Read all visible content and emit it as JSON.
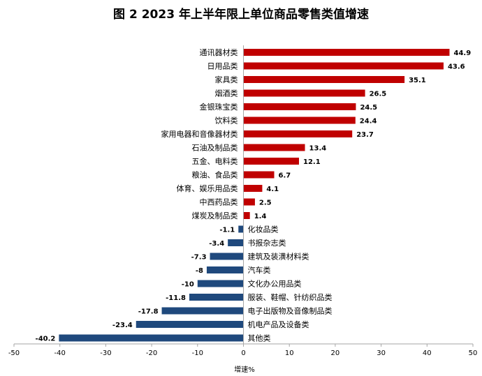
{
  "chart_data": {
    "type": "bar",
    "orientation": "horizontal",
    "title": "图 2  2023 年上半年限上单位商品零售类值增速",
    "xlabel": "增速%",
    "xlim": [
      -50,
      50
    ],
    "xticks": [
      -50,
      -40,
      -30,
      -20,
      -10,
      0,
      10,
      20,
      30,
      40,
      50
    ],
    "grid": false,
    "categories": [
      "通讯器材类",
      "日用品类",
      "家具类",
      "烟酒类",
      "金银珠宝类",
      "饮料类",
      "家用电器和音像器材类",
      "石油及制品类",
      "五金、电料类",
      "粮油、食品类",
      "体育、娱乐用品类",
      "中西药品类",
      "煤炭及制品类",
      "化妆品类",
      "书报杂志类",
      "建筑及装潢材料类",
      "汽车类",
      "文化办公用品类",
      "服装、鞋帽、针纺织品类",
      "电子出版物及音像制品类",
      "机电产品及设备类",
      "其他类"
    ],
    "values": [
      44.9,
      43.6,
      35.1,
      26.5,
      24.5,
      24.4,
      23.7,
      13.4,
      12.1,
      6.7,
      4.1,
      2.5,
      1.4,
      -1.1,
      -3.4,
      -7.3,
      -8,
      -10,
      -11.8,
      -17.8,
      -23.4,
      -40.2
    ],
    "value_labels": [
      "44.9",
      "43.6",
      "35.1",
      "26.5",
      "24.5",
      "24.4",
      "23.7",
      "13.4",
      "12.1",
      "6.7",
      "4.1",
      "2.5",
      "1.4",
      "-1.1",
      "-3.4",
      "-7.3",
      "-8",
      "-10",
      "-11.8",
      "-17.8",
      "-23.4",
      "-40.2"
    ],
    "colors": {
      "positive": "#c00000",
      "negative": "#1f497d",
      "axis": "#a6a6a6"
    }
  }
}
